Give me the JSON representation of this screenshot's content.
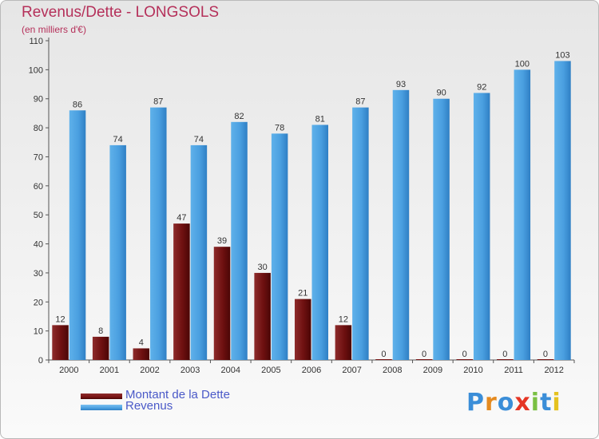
{
  "chart_data": {
    "type": "bar",
    "title": "Revenus/Dette - LONGSOLS",
    "subtitle": "(en milliers d'€)",
    "categories": [
      "2000",
      "2001",
      "2002",
      "2003",
      "2004",
      "2005",
      "2006",
      "2007",
      "2008",
      "2009",
      "2010",
      "2011",
      "2012"
    ],
    "series": [
      {
        "name": "Montant de la Dette",
        "color": "#7a1515",
        "values": [
          12,
          8,
          4,
          47,
          39,
          30,
          21,
          12,
          0,
          0,
          0,
          0,
          0
        ]
      },
      {
        "name": "Revenus",
        "color": "#4a9fe0",
        "values": [
          86,
          74,
          87,
          74,
          82,
          78,
          81,
          87,
          93,
          90,
          92,
          100,
          103
        ]
      }
    ],
    "yticks": [
      0,
      10,
      20,
      30,
      40,
      50,
      60,
      70,
      80,
      90,
      100,
      110
    ],
    "ylim": [
      0,
      110
    ],
    "grid": false,
    "legend_position": "bottom-left"
  },
  "logo": {
    "text": "Proxiti",
    "letter_colors": [
      "#3b8ed8",
      "#e58a1f",
      "#3b8ed8",
      "#e53524",
      "#7ac043",
      "#3b8ed8",
      "#e5c21f"
    ]
  }
}
